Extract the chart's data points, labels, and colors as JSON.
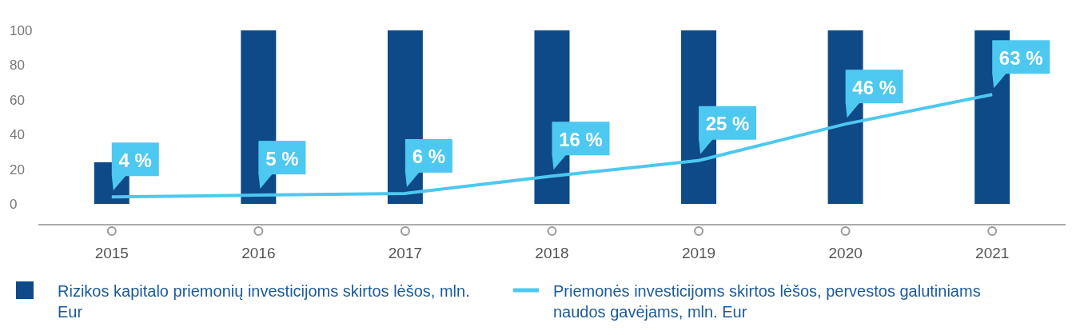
{
  "chart_data": {
    "type": "bar",
    "categories": [
      "2015",
      "2016",
      "2017",
      "2018",
      "2019",
      "2020",
      "2021"
    ],
    "ylim": [
      -12,
      100
    ],
    "yticks": [
      0,
      20,
      40,
      60,
      80,
      100
    ],
    "grid": false,
    "legend": "bottom",
    "series": [
      {
        "name": "Rizikos kapitalo priemonių investicijoms skirtos lėšos, mln. Eur",
        "color": "#0d4a87",
        "values": [
          24,
          100,
          100,
          100,
          100,
          100,
          100
        ]
      },
      {
        "name": "Priemonės investicijoms skirtos lėšos, pervestos galutiniams naudos gavėjams, mln. Eur",
        "type": "line",
        "color": "#4dc8f0",
        "marker": "none",
        "line_style": "solid",
        "values": [
          4,
          5,
          6,
          16,
          25,
          46,
          63
        ],
        "value_labels": [
          "4 %",
          "5 %",
          "6 %",
          "16 %",
          "25 %",
          "46 %",
          "63 %"
        ]
      }
    ]
  }
}
